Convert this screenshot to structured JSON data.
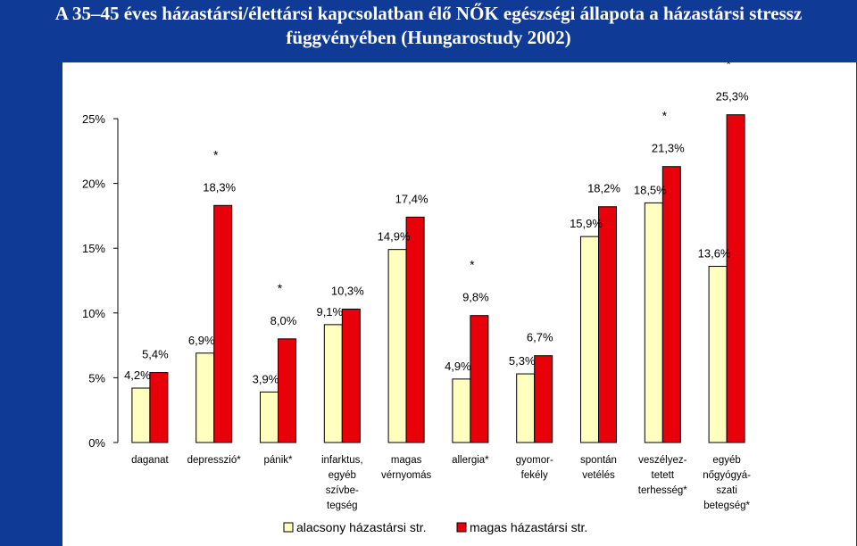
{
  "title_line1": "A 35–45 éves házastársi/élettársi kapcsolatban élő NŐK egészségi állapota a házastársi stressz",
  "title_line2": "függvényében (Hungarostudy 2002)",
  "colors": {
    "background": "#0f3a96",
    "low": "#ffffc0",
    "high": "#e8000b"
  },
  "chart_data": {
    "type": "bar",
    "title": "A 35–45 éves házastársi/élettársi kapcsolatban élő NŐK egészségi állapota a házastársi stressz függvényében (Hungarostudy 2002)",
    "ylim": [
      0,
      25
    ],
    "yticks": [
      "0%",
      "5%",
      "10%",
      "15%",
      "20%",
      "25%"
    ],
    "grid": false,
    "legend": "bottom",
    "categories": [
      [
        "daganat"
      ],
      [
        "depresszió*"
      ],
      [
        "pánik*"
      ],
      [
        "infarktus,",
        "egyéb",
        "szívbe-",
        "tegség"
      ],
      [
        "magas",
        "vérnyomás"
      ],
      [
        "allergia*"
      ],
      [
        "gyomor-",
        "fekély"
      ],
      [
        "spontán",
        "vetélés"
      ],
      [
        "veszélyez-",
        "tetett",
        "terhesség*"
      ],
      [
        "egyéb",
        "nőgyógyá-",
        "szati",
        "betegség*"
      ]
    ],
    "series": [
      {
        "name": "alacsony házastársi str.",
        "color": "#ffffc0",
        "values": [
          4.2,
          6.9,
          3.9,
          9.1,
          14.9,
          4.9,
          5.3,
          15.9,
          18.5,
          13.6
        ],
        "labels": [
          "4,2%",
          "6,9%",
          "3,9%",
          "9,1%",
          "14,9%",
          "4,9%",
          "5,3%",
          "15,9%",
          "18,5%",
          "13,6%"
        ]
      },
      {
        "name": "magas házastársi str.",
        "color": "#e8000b",
        "values": [
          5.4,
          18.3,
          8.0,
          10.3,
          17.4,
          9.8,
          6.7,
          18.2,
          21.3,
          25.3
        ],
        "labels": [
          "5,4%",
          "18,3%",
          "8,0%",
          "10,3%",
          "17,4%",
          "9,8%",
          "6,7%",
          "18,2%",
          "21,3%",
          "25,3%"
        ]
      }
    ],
    "significance": [
      "",
      "*",
      "*",
      "",
      "",
      "*",
      "",
      "",
      "*",
      "*"
    ]
  }
}
